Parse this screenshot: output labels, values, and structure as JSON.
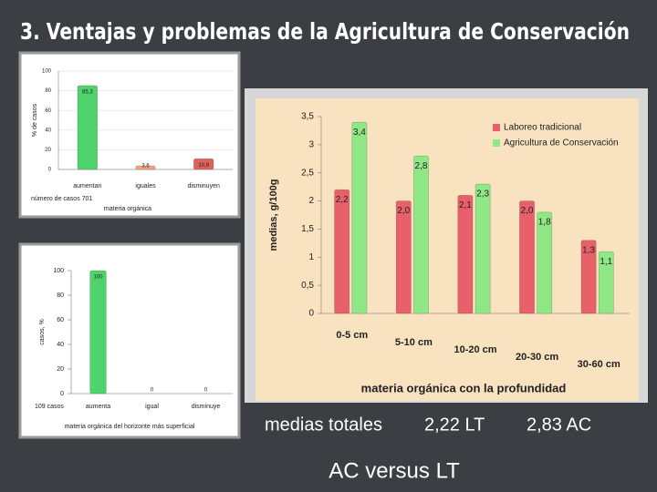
{
  "title": "3. Ventajas y problemas de la Agricultura de Conservación",
  "chart_data": [
    {
      "type": "bar",
      "categories": [
        "aumentan",
        "iguales",
        "disminuyen"
      ],
      "values": [
        85.3,
        3.6,
        10.9
      ],
      "value_labels": [
        "85,3",
        "3,6",
        "10,9"
      ],
      "colors": [
        "#4fd36b",
        "#f2a37a",
        "#e0625c"
      ],
      "ylabel": "% de casos",
      "xlabel": "materia orgánica",
      "note": "número de casos 701",
      "ylim": [
        0,
        100
      ],
      "yticks": [
        0,
        20,
        40,
        60,
        80,
        100
      ],
      "grid": true
    },
    {
      "type": "bar",
      "categories": [
        "aumenta",
        "igual",
        "disminuye"
      ],
      "values": [
        100,
        0,
        0
      ],
      "value_labels": [
        "100",
        "0",
        "0"
      ],
      "colors": [
        "#4fd36b",
        "#e8c26a",
        "#e0625c"
      ],
      "ylabel": "casos,  %",
      "xlabel": "materia orgánica del horizonte más superficial",
      "note": "109 casos",
      "ylim": [
        0,
        100
      ],
      "yticks": [
        0,
        20,
        40,
        60,
        80,
        100
      ],
      "grid": false
    },
    {
      "type": "grouped-bar",
      "categories": [
        "0-5 cm",
        "5-10 cm",
        "10-20 cm",
        "20-30 cm",
        "30-60 cm"
      ],
      "series": [
        {
          "name": "Laboreo tradicional",
          "color": "#e8606a",
          "values": [
            2.2,
            2.0,
            2.1,
            2.0,
            1.3
          ],
          "value_labels": [
            "2,2",
            "2,0",
            "2,1",
            "2,0",
            "1,3"
          ]
        },
        {
          "name": "Agricultura de Conservación",
          "color": "#8fe885",
          "values": [
            3.4,
            2.8,
            2.3,
            1.8,
            1.1
          ],
          "value_labels": [
            "3,4",
            "2,8",
            "2,3",
            "1,8",
            "1,1"
          ]
        }
      ],
      "ylabel": "medias, g/100g",
      "xlabel": "materia orgánica con la profundidad",
      "legend": "upper-right",
      "ylim": [
        0,
        3.5
      ],
      "yticks": [
        0,
        {
          "value": 0.5,
          "label": "0,5"
        },
        1,
        {
          "value": 1.5,
          "label": "1,5"
        },
        2,
        {
          "value": 2.5,
          "label": "2,5"
        },
        3,
        {
          "value": 3.5,
          "label": "3,5"
        }
      ],
      "grid": false
    }
  ],
  "footer": {
    "label": "medias totales",
    "lt": "2,22 LT",
    "ac": "2,83 AC",
    "conclusion": "AC versus LT"
  }
}
